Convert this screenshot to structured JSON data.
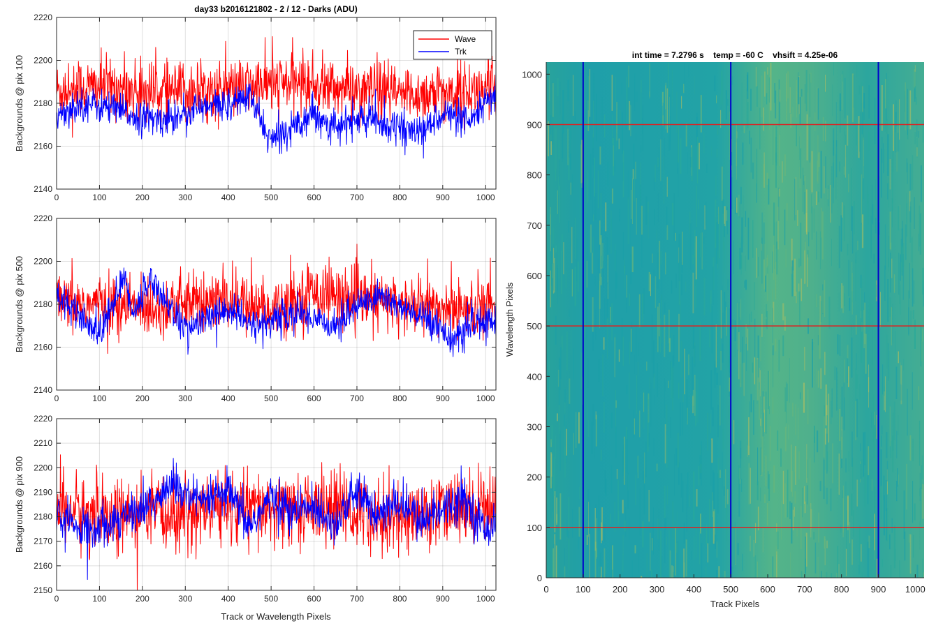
{
  "figure": {
    "background": "#ffffff"
  },
  "chart_data": [
    {
      "type": "line",
      "title": "day33 b2016121802 - 2 / 12 - Darks (ADU)",
      "xlabel": "",
      "ylabel": "Backgrounds @ pix 100",
      "xlim": [
        0,
        1024
      ],
      "ylim": [
        2140,
        2220
      ],
      "xticks": [
        0,
        100,
        200,
        300,
        400,
        500,
        600,
        700,
        800,
        900,
        1000
      ],
      "yticks": [
        2140,
        2160,
        2180,
        2200,
        2220
      ],
      "xtick_labels": [
        "0",
        "100",
        "200",
        "300",
        "400",
        "500",
        "600",
        "700",
        "800",
        "900",
        "1000"
      ],
      "ytick_labels": [
        "2140",
        "2160",
        "2180",
        "2200",
        "2220"
      ],
      "grid": true,
      "legend": {
        "placement": "top-right",
        "entries": [
          "Wave",
          "Trk"
        ]
      },
      "series": [
        {
          "name": "Wave",
          "color": "#ff0000",
          "trend": [
            [
              0,
              2186
            ],
            [
              100,
              2188
            ],
            [
              200,
              2186
            ],
            [
              300,
              2185
            ],
            [
              400,
              2186
            ],
            [
              470,
              2188
            ],
            [
              560,
              2190
            ],
            [
              620,
              2188
            ],
            [
              700,
              2186
            ],
            [
              800,
              2184
            ],
            [
              900,
              2185
            ],
            [
              1024,
              2186
            ]
          ],
          "noise": 8
        },
        {
          "name": "Trk",
          "color": "#0000ff",
          "trend": [
            [
              0,
              2175
            ],
            [
              60,
              2180
            ],
            [
              120,
              2178
            ],
            [
              180,
              2174
            ],
            [
              240,
              2172
            ],
            [
              300,
              2176
            ],
            [
              350,
              2178
            ],
            [
              400,
              2180
            ],
            [
              450,
              2183
            ],
            [
              500,
              2162
            ],
            [
              540,
              2168
            ],
            [
              600,
              2176
            ],
            [
              650,
              2168
            ],
            [
              700,
              2173
            ],
            [
              780,
              2170
            ],
            [
              850,
              2166
            ],
            [
              900,
              2176
            ],
            [
              960,
              2170
            ],
            [
              1024,
              2185
            ]
          ],
          "noise": 4.5
        }
      ]
    },
    {
      "type": "line",
      "title": "",
      "xlabel": "",
      "ylabel": "Backgrounds @ pix 500",
      "xlim": [
        0,
        1024
      ],
      "ylim": [
        2140,
        2220
      ],
      "xticks": [
        0,
        100,
        200,
        300,
        400,
        500,
        600,
        700,
        800,
        900,
        1000
      ],
      "yticks": [
        2140,
        2160,
        2180,
        2200,
        2220
      ],
      "xtick_labels": [
        "0",
        "100",
        "200",
        "300",
        "400",
        "500",
        "600",
        "700",
        "800",
        "900",
        "1000"
      ],
      "ytick_labels": [
        "2140",
        "2160",
        "2180",
        "2200",
        "2220"
      ],
      "grid": true,
      "series": [
        {
          "name": "Wave",
          "color": "#ff0000",
          "trend": [
            [
              0,
              2180
            ],
            [
              100,
              2180
            ],
            [
              200,
              2178
            ],
            [
              300,
              2180
            ],
            [
              400,
              2182
            ],
            [
              500,
              2178
            ],
            [
              600,
              2186
            ],
            [
              700,
              2182
            ],
            [
              800,
              2180
            ],
            [
              900,
              2178
            ],
            [
              1024,
              2180
            ]
          ],
          "noise": 8
        },
        {
          "name": "Trk",
          "color": "#0000ff",
          "trend": [
            [
              0,
              2185
            ],
            [
              60,
              2172
            ],
            [
              100,
              2166
            ],
            [
              140,
              2185
            ],
            [
              160,
              2192
            ],
            [
              180,
              2176
            ],
            [
              220,
              2192
            ],
            [
              260,
              2180
            ],
            [
              300,
              2168
            ],
            [
              350,
              2173
            ],
            [
              400,
              2178
            ],
            [
              450,
              2170
            ],
            [
              500,
              2172
            ],
            [
              550,
              2176
            ],
            [
              600,
              2174
            ],
            [
              650,
              2170
            ],
            [
              700,
              2180
            ],
            [
              760,
              2184
            ],
            [
              820,
              2176
            ],
            [
              880,
              2172
            ],
            [
              930,
              2162
            ],
            [
              960,
              2170
            ],
            [
              1024,
              2172
            ]
          ],
          "noise": 4.5
        }
      ]
    },
    {
      "type": "line",
      "title": "",
      "xlabel": "Track or Wavelength Pixels",
      "ylabel": "Backgrounds @ pix 900",
      "xlim": [
        0,
        1024
      ],
      "ylim": [
        2150,
        2220
      ],
      "xticks": [
        0,
        100,
        200,
        300,
        400,
        500,
        600,
        700,
        800,
        900,
        1000
      ],
      "yticks": [
        2150,
        2160,
        2170,
        2180,
        2190,
        2200,
        2210,
        2220
      ],
      "xtick_labels": [
        "0",
        "100",
        "200",
        "300",
        "400",
        "500",
        "600",
        "700",
        "800",
        "900",
        "1000"
      ],
      "ytick_labels": [
        "2150",
        "2160",
        "2170",
        "2180",
        "2190",
        "2200",
        "2210",
        "2220"
      ],
      "grid": true,
      "series": [
        {
          "name": "Wave",
          "color": "#ff0000",
          "trend": [
            [
              0,
              2184
            ],
            [
              100,
              2180
            ],
            [
              200,
              2180
            ],
            [
              300,
              2182
            ],
            [
              400,
              2184
            ],
            [
              500,
              2182
            ],
            [
              600,
              2184
            ],
            [
              700,
              2182
            ],
            [
              800,
              2180
            ],
            [
              900,
              2182
            ],
            [
              1024,
              2186
            ]
          ],
          "noise": 9
        },
        {
          "name": "Trk",
          "color": "#0000ff",
          "trend": [
            [
              0,
              2180
            ],
            [
              60,
              2174
            ],
            [
              120,
              2178
            ],
            [
              180,
              2182
            ],
            [
              230,
              2186
            ],
            [
              270,
              2194
            ],
            [
              300,
              2188
            ],
            [
              350,
              2186
            ],
            [
              400,
              2190
            ],
            [
              450,
              2176
            ],
            [
              500,
              2188
            ],
            [
              550,
              2182
            ],
            [
              600,
              2184
            ],
            [
              650,
              2178
            ],
            [
              700,
              2190
            ],
            [
              750,
              2180
            ],
            [
              800,
              2186
            ],
            [
              850,
              2178
            ],
            [
              900,
              2184
            ],
            [
              950,
              2188
            ],
            [
              1000,
              2174
            ],
            [
              1024,
              2180
            ]
          ],
          "noise": 5
        }
      ]
    },
    {
      "type": "heatmap",
      "title": "int time = 7.2796 s    temp = -60 C    vhsift = 4.25e-06",
      "xlabel": "Track Pixels",
      "ylabel": "Wavelength Pixels",
      "xlim": [
        0,
        1024
      ],
      "ylim": [
        0,
        1024
      ],
      "xticks": [
        0,
        100,
        200,
        300,
        400,
        500,
        600,
        700,
        800,
        900,
        1000
      ],
      "yticks": [
        0,
        100,
        200,
        300,
        400,
        500,
        600,
        700,
        800,
        900,
        1000
      ],
      "xtick_labels": [
        "0",
        "100",
        "200",
        "300",
        "400",
        "500",
        "600",
        "700",
        "800",
        "900",
        "1000"
      ],
      "ytick_labels": [
        "0",
        "100",
        "200",
        "300",
        "400",
        "500",
        "600",
        "700",
        "800",
        "900",
        "1000"
      ],
      "grid": false,
      "colormap": [
        "#1a9fa8",
        "#2aa89a",
        "#6ab67a",
        "#a9bd64"
      ],
      "markers": {
        "vertical_track_pixels": [
          100,
          500,
          900
        ],
        "vertical_color": "#0000cc",
        "horizontal_wavelength_pixels": [
          100,
          500,
          900
        ],
        "horizontal_color": "#dd2222"
      }
    }
  ]
}
